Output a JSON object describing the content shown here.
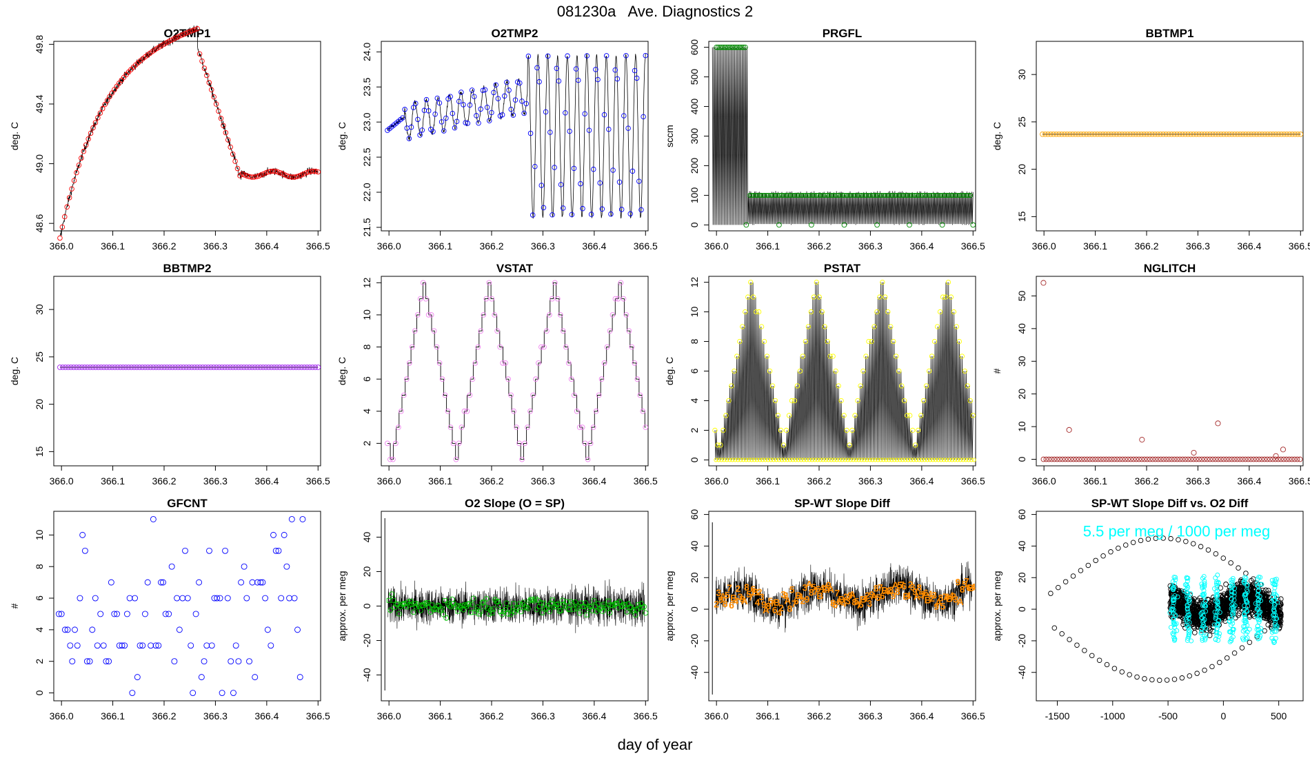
{
  "page": {
    "title": "081230a   Ave. Diagnostics 2",
    "xlabel": "day of year"
  },
  "chart_data": [
    {
      "id": "o2tmp1",
      "type": "line",
      "title": "O2TMP1",
      "ylabel": "deg. C",
      "xlim": [
        365.985,
        366.505
      ],
      "ylim": [
        48.55,
        49.82
      ],
      "xticks": [
        "366.0",
        "366.1",
        "366.2",
        "366.3",
        "366.4",
        "366.5"
      ],
      "xtick_values": [
        366.0,
        366.1,
        366.2,
        366.3,
        366.4,
        366.5
      ],
      "yticks": [
        "48.6",
        "49.0",
        "49.4",
        "49.8"
      ],
      "ytick_values": [
        48.6,
        49.0,
        49.4,
        49.8
      ],
      "line_color": "#000000",
      "marker": "circle",
      "marker_color": "#ff0000",
      "shape": "o2tmp1"
    },
    {
      "id": "o2tmp2",
      "type": "line",
      "title": "O2TMP2",
      "ylabel": "deg. C",
      "xlim": [
        365.985,
        366.505
      ],
      "ylim": [
        21.45,
        24.15
      ],
      "xticks": [
        "366.0",
        "366.1",
        "366.2",
        "366.3",
        "366.4",
        "366.5"
      ],
      "xtick_values": [
        366.0,
        366.1,
        366.2,
        366.3,
        366.4,
        366.5
      ],
      "yticks": [
        "21.5",
        "22.0",
        "22.5",
        "23.0",
        "23.5",
        "24.0"
      ],
      "ytick_values": [
        21.5,
        22.0,
        22.5,
        23.0,
        23.5,
        24.0
      ],
      "line_color": "#000000",
      "marker": "circle",
      "marker_color": "#0000ff",
      "shape": "o2tmp2"
    },
    {
      "id": "prgfl",
      "type": "line",
      "title": "PRGFL",
      "ylabel": "sccm",
      "xlim": [
        365.985,
        366.505
      ],
      "ylim": [
        -20,
        620
      ],
      "xticks": [
        "366.0",
        "366.1",
        "366.2",
        "366.3",
        "366.4",
        "366.5"
      ],
      "xtick_values": [
        366.0,
        366.1,
        366.2,
        366.3,
        366.4,
        366.5
      ],
      "yticks": [
        "0",
        "100",
        "200",
        "300",
        "400",
        "500",
        "600"
      ],
      "ytick_values": [
        0,
        100,
        200,
        300,
        400,
        500,
        600
      ],
      "line_color": "#000000",
      "marker": "circle",
      "marker_color": "#008800",
      "shape": "prgfl"
    },
    {
      "id": "bbtmp1",
      "type": "line",
      "title": "BBTMP1",
      "ylabel": "deg. C",
      "xlim": [
        365.985,
        366.505
      ],
      "ylim": [
        13.5,
        33.5
      ],
      "xticks": [
        "366.0",
        "366.1",
        "366.2",
        "366.3",
        "366.4",
        "366.5"
      ],
      "xtick_values": [
        366.0,
        366.1,
        366.2,
        366.3,
        366.4,
        366.5
      ],
      "yticks": [
        "15",
        "20",
        "25",
        "30"
      ],
      "ytick_values": [
        15,
        20,
        25,
        30
      ],
      "line_color": "#000000",
      "marker": "circle",
      "marker_color": "#ffa500",
      "shape": "flat",
      "level": 23.7
    },
    {
      "id": "bbtmp2",
      "type": "line",
      "title": "BBTMP2",
      "ylabel": "deg. C",
      "xlim": [
        365.985,
        366.505
      ],
      "ylim": [
        13.5,
        33.5
      ],
      "xticks": [
        "366.0",
        "366.1",
        "366.2",
        "366.3",
        "366.4",
        "366.5"
      ],
      "xtick_values": [
        366.0,
        366.1,
        366.2,
        366.3,
        366.4,
        366.5
      ],
      "yticks": [
        "15",
        "20",
        "25",
        "30"
      ],
      "ytick_values": [
        15,
        20,
        25,
        30
      ],
      "line_color": "#000000",
      "marker": "circle",
      "marker_color": "#a020f0",
      "shape": "flat",
      "level": 23.9
    },
    {
      "id": "vstat",
      "type": "line",
      "title": "VSTAT",
      "ylabel": "deg. C",
      "xlim": [
        365.985,
        366.505
      ],
      "ylim": [
        0.6,
        12.4
      ],
      "xticks": [
        "366.0",
        "366.1",
        "366.2",
        "366.3",
        "366.4",
        "366.5"
      ],
      "xtick_values": [
        366.0,
        366.1,
        366.2,
        366.3,
        366.4,
        366.5
      ],
      "yticks": [
        "2",
        "4",
        "6",
        "8",
        "10",
        "12"
      ],
      "ytick_values": [
        2,
        4,
        6,
        8,
        10,
        12
      ],
      "line_color": "#000000",
      "marker": "circle",
      "marker_color": "#ee82ee",
      "shape": "stairs"
    },
    {
      "id": "pstat",
      "type": "line",
      "title": "PSTAT",
      "ylabel": "deg. C",
      "xlim": [
        365.985,
        366.505
      ],
      "ylim": [
        -0.4,
        12.4
      ],
      "xticks": [
        "366.0",
        "366.1",
        "366.2",
        "366.3",
        "366.4",
        "366.5"
      ],
      "xtick_values": [
        366.0,
        366.1,
        366.2,
        366.3,
        366.4,
        366.5
      ],
      "yticks": [
        "0",
        "2",
        "4",
        "6",
        "8",
        "10",
        "12"
      ],
      "ytick_values": [
        0,
        2,
        4,
        6,
        8,
        10,
        12
      ],
      "line_color": "#000000",
      "marker": "circle",
      "marker_color": "#ffff00",
      "shape": "pstat"
    },
    {
      "id": "nglitch",
      "type": "scatter",
      "title": "NGLITCH",
      "ylabel": "#",
      "xlim": [
        365.985,
        366.505
      ],
      "ylim": [
        -2,
        56
      ],
      "xticks": [
        "366.0",
        "366.1",
        "366.2",
        "366.3",
        "366.4",
        "366.5"
      ],
      "xtick_values": [
        366.0,
        366.1,
        366.2,
        366.3,
        366.4,
        366.5
      ],
      "yticks": [
        "0",
        "10",
        "20",
        "30",
        "40",
        "50"
      ],
      "ytick_values": [
        0,
        10,
        20,
        30,
        40,
        50
      ],
      "marker": "circle",
      "marker_color": "#a52a2a",
      "shape": "nglitch",
      "spikes": [
        [
          365.999,
          54
        ],
        [
          366.049,
          9
        ],
        [
          366.191,
          6
        ],
        [
          366.339,
          11
        ],
        [
          366.466,
          3
        ],
        [
          366.292,
          2
        ],
        [
          366.452,
          1
        ]
      ]
    },
    {
      "id": "gfcnt",
      "type": "scatter",
      "title": "GFCNT",
      "ylabel": "#",
      "xlim": [
        365.985,
        366.505
      ],
      "ylim": [
        -0.5,
        11.5
      ],
      "xticks": [
        "366.0",
        "366.1",
        "366.2",
        "366.3",
        "366.4",
        "366.5"
      ],
      "xtick_values": [
        366.0,
        366.1,
        366.2,
        366.3,
        366.4,
        366.5
      ],
      "yticks": [
        "0",
        "2",
        "4",
        "6",
        "8",
        "10"
      ],
      "ytick_values": [
        0,
        2,
        4,
        6,
        8,
        10
      ],
      "marker": "circle",
      "marker_color": "#0000ff",
      "shape": "points",
      "points": [
        [
          365.995,
          5
        ],
        [
          366.0,
          5
        ],
        [
          366.007,
          4
        ],
        [
          366.012,
          4
        ],
        [
          366.017,
          3
        ],
        [
          366.021,
          2
        ],
        [
          366.026,
          4
        ],
        [
          366.031,
          3
        ],
        [
          366.036,
          6
        ],
        [
          366.041,
          10
        ],
        [
          366.046,
          9
        ],
        [
          366.05,
          2
        ],
        [
          366.055,
          2
        ],
        [
          366.06,
          4
        ],
        [
          366.066,
          6
        ],
        [
          366.07,
          3
        ],
        [
          366.076,
          5
        ],
        [
          366.082,
          3
        ],
        [
          366.087,
          2
        ],
        [
          366.092,
          2
        ],
        [
          366.097,
          7
        ],
        [
          366.103,
          5
        ],
        [
          366.108,
          5
        ],
        [
          366.113,
          3
        ],
        [
          366.118,
          3
        ],
        [
          366.123,
          3
        ],
        [
          366.128,
          5
        ],
        [
          366.133,
          6
        ],
        [
          366.138,
          0
        ],
        [
          366.143,
          6
        ],
        [
          366.148,
          1
        ],
        [
          366.153,
          3
        ],
        [
          366.158,
          3
        ],
        [
          366.163,
          5
        ],
        [
          366.168,
          7
        ],
        [
          366.174,
          3
        ],
        [
          366.179,
          11
        ],
        [
          366.184,
          3
        ],
        [
          366.189,
          3
        ],
        [
          366.194,
          7
        ],
        [
          366.198,
          7
        ],
        [
          366.203,
          5
        ],
        [
          366.209,
          5
        ],
        [
          366.215,
          8
        ],
        [
          366.22,
          2
        ],
        [
          366.225,
          6
        ],
        [
          366.23,
          4
        ],
        [
          366.236,
          6
        ],
        [
          366.241,
          9
        ],
        [
          366.246,
          6
        ],
        [
          366.252,
          3
        ],
        [
          366.256,
          0
        ],
        [
          366.262,
          5
        ],
        [
          366.268,
          7
        ],
        [
          366.273,
          1
        ],
        [
          366.278,
          2
        ],
        [
          366.283,
          3
        ],
        [
          366.288,
          9
        ],
        [
          366.293,
          3
        ],
        [
          366.298,
          6
        ],
        [
          366.303,
          6
        ],
        [
          366.309,
          6
        ],
        [
          366.313,
          0
        ],
        [
          366.319,
          9
        ],
        [
          366.324,
          6
        ],
        [
          366.33,
          2
        ],
        [
          366.335,
          0
        ],
        [
          366.34,
          3
        ],
        [
          366.345,
          2
        ],
        [
          366.35,
          7
        ],
        [
          366.356,
          8
        ],
        [
          366.361,
          6
        ],
        [
          366.366,
          2
        ],
        [
          366.372,
          7
        ],
        [
          366.377,
          1
        ],
        [
          366.382,
          7
        ],
        [
          366.388,
          7
        ],
        [
          366.392,
          7
        ],
        [
          366.397,
          6
        ],
        [
          366.402,
          4
        ],
        [
          366.408,
          3
        ],
        [
          366.413,
          10
        ],
        [
          366.418,
          9
        ],
        [
          366.423,
          9
        ],
        [
          366.428,
          6
        ],
        [
          366.434,
          10
        ],
        [
          366.439,
          8
        ],
        [
          366.444,
          6
        ],
        [
          366.449,
          11
        ],
        [
          366.454,
          6
        ],
        [
          366.46,
          4
        ],
        [
          366.465,
          1
        ],
        [
          366.47,
          11
        ]
      ]
    },
    {
      "id": "o2slope",
      "type": "line",
      "title": "O2 Slope (O = SP)",
      "ylabel": "approx. per meg",
      "xlim": [
        365.985,
        366.505
      ],
      "ylim": [
        -55,
        55
      ],
      "xticks": [
        "366.0",
        "366.1",
        "366.2",
        "366.3",
        "366.4",
        "366.5"
      ],
      "xtick_values": [
        366.0,
        366.1,
        366.2,
        366.3,
        366.4,
        366.5
      ],
      "yticks": [
        "-40",
        "-20",
        "0",
        "20",
        "40"
      ],
      "ytick_values": [
        -40,
        -20,
        0,
        20,
        40
      ],
      "line_color": "#000000",
      "marker": "circle",
      "marker_color": "#00cc00",
      "shape": "noise",
      "center": 0,
      "amp": 10,
      "spike": [
        51,
        -49
      ]
    },
    {
      "id": "spwt",
      "type": "line",
      "title": "SP-WT Slope Diff",
      "ylabel": "approx. per meg",
      "xlim": [
        365.985,
        366.505
      ],
      "ylim": [
        -58,
        62
      ],
      "xticks": [
        "366.0",
        "366.1",
        "366.2",
        "366.3",
        "366.4",
        "366.5"
      ],
      "xtick_values": [
        366.0,
        366.1,
        366.2,
        366.3,
        366.4,
        366.5
      ],
      "yticks": [
        "-40",
        "-20",
        "0",
        "20",
        "40",
        "60"
      ],
      "ytick_values": [
        -40,
        -20,
        0,
        20,
        40,
        60
      ],
      "line_color": "#000000",
      "marker": "text",
      "marker_color": "#ff8c00",
      "shape": "noise",
      "center": 6,
      "amp": 12,
      "spike": [
        55,
        -54
      ]
    },
    {
      "id": "spwt-vs-o2",
      "type": "scatter",
      "title": "SP-WT Slope Diff vs. O2 Diff",
      "ylabel": "approx. per meg",
      "xlim": [
        -1690,
        720
      ],
      "ylim": [
        -58,
        62
      ],
      "xticks": [
        "-1500",
        "-1000",
        "-500",
        "0",
        "500"
      ],
      "xtick_values": [
        -1500,
        -1000,
        -500,
        0,
        500
      ],
      "yticks": [
        "-40",
        "-20",
        "0",
        "20",
        "40",
        "60"
      ],
      "ytick_values": [
        -40,
        -20,
        0,
        20,
        40,
        60
      ],
      "marker": "circle",
      "marker_color": "#000000",
      "accent_color": "#00ffff",
      "shape": "scatter-loop",
      "annotation": "5.5 per meg / 1000 per meg",
      "cluster_centers": [
        -450,
        -320,
        -180,
        -60,
        80,
        200,
        320,
        460
      ]
    }
  ]
}
